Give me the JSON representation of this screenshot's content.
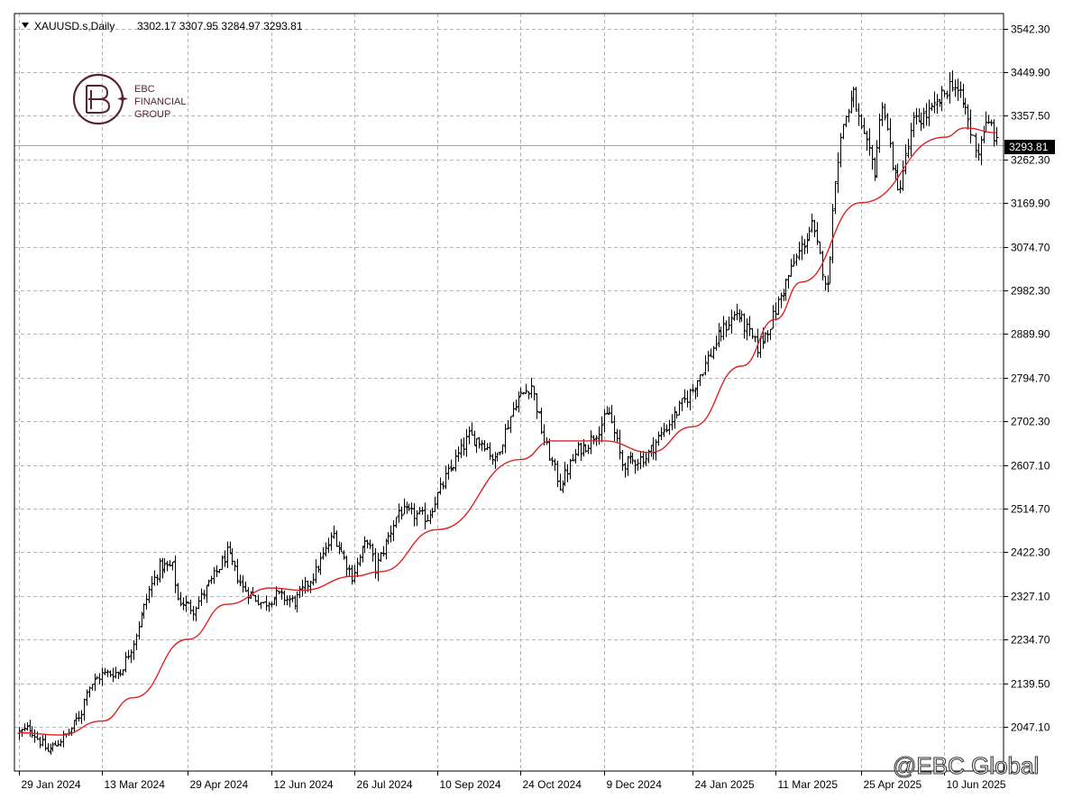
{
  "header": {
    "symbol": "XAUUSD.s,Daily",
    "ohlc": "3302.17 3307.95 3284.97 3293.81"
  },
  "logo": {
    "line1": "EBC",
    "line2": "FINANCIAL",
    "line3": "GROUP"
  },
  "watermark": "@EBC Global",
  "current_price_label": "3293.81",
  "colors": {
    "bars": "#000000",
    "moving_average": "#e02020",
    "grid": "#b4b4b4",
    "price_line": "#a0a0a0",
    "price_label_bg": "#000000",
    "logo": "#5a2230"
  },
  "chart_data": {
    "type": "ohlc",
    "symbol": "XAUUSD.s",
    "timeframe": "Daily",
    "grid": true,
    "y_ticks": [
      "3542.30",
      "3449.90",
      "3357.50",
      "3262.30",
      "3169.90",
      "3074.70",
      "2982.30",
      "2889.90",
      "2794.70",
      "2702.30",
      "2607.10",
      "2514.70",
      "2422.30",
      "2327.10",
      "2234.70",
      "2139.50",
      "2047.10"
    ],
    "x_ticks": [
      "29 Jan 2024",
      "13 Mar 2024",
      "29 Apr 2024",
      "12 Jun 2024",
      "26 Jul 2024",
      "10 Sep 2024",
      "24 Oct 2024",
      "9 Dec 2024",
      "24 Jan 2025",
      "11 Mar 2025",
      "25 Apr 2025",
      "10 Jun 2025"
    ],
    "ylim": [
      1953,
      3575
    ],
    "last_price": 3293.81,
    "price_anchors": [
      [
        "29 Jan 2024",
        2035
      ],
      [
        "2 Feb 2024",
        2045
      ],
      [
        "13 Feb 2024",
        1995
      ],
      [
        "23 Feb 2024",
        2035
      ],
      [
        "1 Mar 2024",
        2080
      ],
      [
        "5 Mar 2024",
        2130
      ],
      [
        "13 Mar 2024",
        2160
      ],
      [
        "22 Mar 2024",
        2165
      ],
      [
        "29 Mar 2024",
        2230
      ],
      [
        "8 Apr 2024",
        2340
      ],
      [
        "12 Apr 2024",
        2390
      ],
      [
        "19 Apr 2024",
        2390
      ],
      [
        "23 Apr 2024",
        2320
      ],
      [
        "1 May 2024",
        2300
      ],
      [
        "10 May 2024",
        2360
      ],
      [
        "20 May 2024",
        2420
      ],
      [
        "28 May 2024",
        2345
      ],
      [
        "7 Jun 2024",
        2310
      ],
      [
        "14 Jun 2024",
        2330
      ],
      [
        "25 Jun 2024",
        2315
      ],
      [
        "5 Jul 2024",
        2380
      ],
      [
        "16 Jul 2024",
        2460
      ],
      [
        "25 Jul 2024",
        2370
      ],
      [
        "2 Aug 2024",
        2450
      ],
      [
        "7 Aug 2024",
        2385
      ],
      [
        "20 Aug 2024",
        2510
      ],
      [
        "4 Sep 2024",
        2495
      ],
      [
        "13 Sep 2024",
        2580
      ],
      [
        "26 Sep 2024",
        2670
      ],
      [
        "4 Oct 2024",
        2655
      ],
      [
        "10 Oct 2024",
        2615
      ],
      [
        "22 Oct 2024",
        2745
      ],
      [
        "30 Oct 2024",
        2780
      ],
      [
        "6 Nov 2024",
        2660
      ],
      [
        "14 Nov 2024",
        2565
      ],
      [
        "25 Nov 2024",
        2640
      ],
      [
        "29 Nov 2024",
        2655
      ],
      [
        "11 Dec 2024",
        2720
      ],
      [
        "18 Dec 2024",
        2610
      ],
      [
        "31 Dec 2024",
        2625
      ],
      [
        "10 Jan 2025",
        2690
      ],
      [
        "24 Jan 2025",
        2770
      ],
      [
        "6 Feb 2025",
        2870
      ],
      [
        "11 Feb 2025",
        2900
      ],
      [
        "18 Feb 2025",
        2935
      ],
      [
        "28 Feb 2025",
        2860
      ],
      [
        "7 Mar 2025",
        2910
      ],
      [
        "14 Mar 2025",
        2985
      ],
      [
        "20 Mar 2025",
        3040
      ],
      [
        "31 Mar 2025",
        3120
      ],
      [
        "8 Apr 2025",
        2985
      ],
      [
        "11 Apr 2025",
        3230
      ],
      [
        "16 Apr 2025",
        3340
      ],
      [
        "22 Apr 2025",
        3400
      ],
      [
        "25 Apr 2025",
        3320
      ],
      [
        "2 May 2025",
        3240
      ],
      [
        "7 May 2025",
        3390
      ],
      [
        "15 May 2025",
        3190
      ],
      [
        "23 May 2025",
        3340
      ],
      [
        "4 Jun 2025",
        3370
      ],
      [
        "13 Jun 2025",
        3430
      ],
      [
        "20 Jun 2025",
        3370
      ],
      [
        "24 Jun 2025",
        3320
      ],
      [
        "27 Jun 2025",
        3280
      ],
      [
        "1 Jul 2025",
        3330
      ],
      [
        "4 Jul 2025",
        3335
      ],
      [
        "8 Jul 2025",
        3293.81
      ]
    ],
    "moving_average_anchors": [
      [
        "29 Jan 2024",
        2035
      ],
      [
        "20 Feb 2024",
        2030
      ],
      [
        "13 Mar 2024",
        2060
      ],
      [
        "29 Mar 2024",
        2110
      ],
      [
        "29 Apr 2024",
        2235
      ],
      [
        "20 May 2024",
        2310
      ],
      [
        "12 Jun 2024",
        2345
      ],
      [
        "28 Jun 2024",
        2340
      ],
      [
        "26 Jul 2024",
        2370
      ],
      [
        "9 Aug 2024",
        2380
      ],
      [
        "10 Sep 2024",
        2470
      ],
      [
        "24 Oct 2024",
        2620
      ],
      [
        "11 Nov 2024",
        2660
      ],
      [
        "9 Dec 2024",
        2660
      ],
      [
        "2 Jan 2025",
        2635
      ],
      [
        "24 Jan 2025",
        2690
      ],
      [
        "20 Feb 2025",
        2820
      ],
      [
        "11 Mar 2025",
        2920
      ],
      [
        "25 Mar 2025",
        3000
      ],
      [
        "25 Apr 2025",
        3170
      ],
      [
        "10 Jun 2025",
        3310
      ],
      [
        "20 Jun 2025",
        3330
      ],
      [
        "8 Jul 2025",
        3320
      ]
    ]
  }
}
